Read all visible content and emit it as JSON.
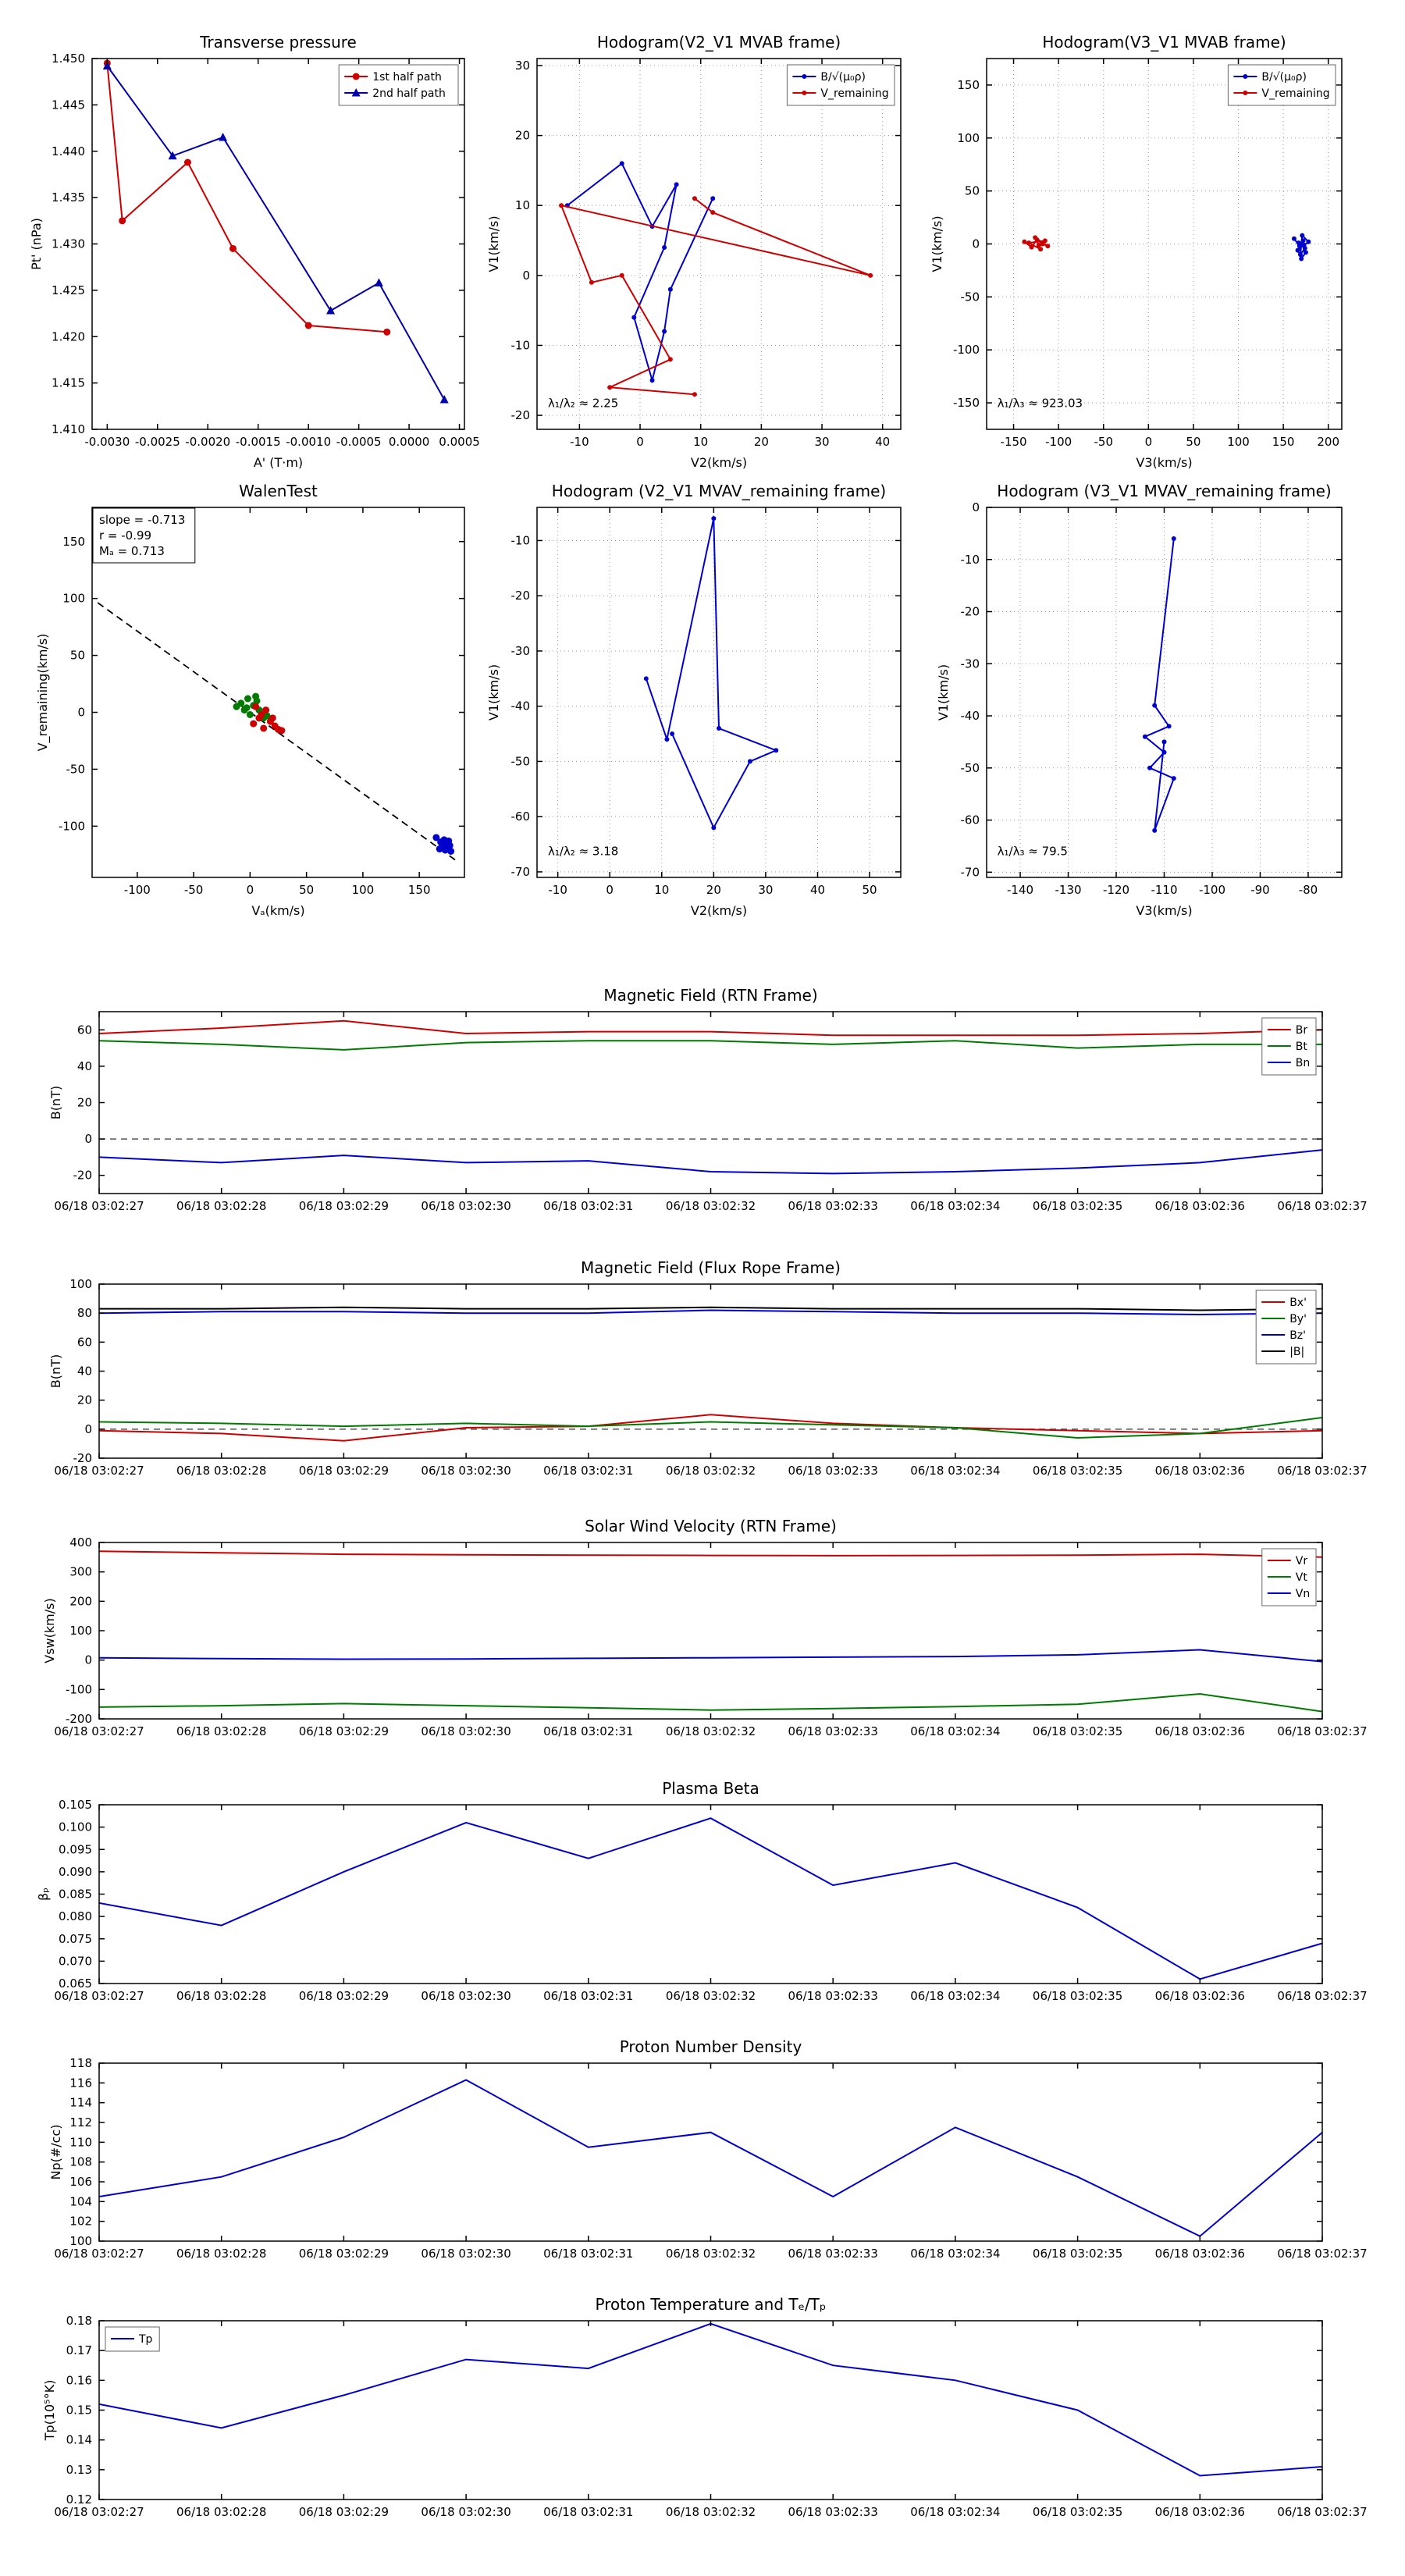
{
  "figure": {
    "background": "#ffffff"
  },
  "times": [
    "06/18 03:02:27",
    "06/18 03:02:28",
    "06/18 03:02:29",
    "06/18 03:02:30",
    "06/18 03:02:31",
    "06/18 03:02:32",
    "06/18 03:02:33",
    "06/18 03:02:34",
    "06/18 03:02:35",
    "06/18 03:02:36",
    "06/18 03:02:37"
  ],
  "colors": {
    "red": "#cc0000",
    "green": "#007a00",
    "blue": "#0000cc",
    "black": "#000000"
  },
  "chart_data": [
    {
      "id": "transverse_pressure",
      "type": "line",
      "title": "Transverse pressure",
      "xlabel": "A' (T·m)",
      "ylabel": "Pt' (nPa)",
      "xlim": [
        -0.00315,
        0.00055
      ],
      "ylim": [
        1.41,
        1.45
      ],
      "xticks": [
        -0.003,
        -0.0025,
        -0.002,
        -0.0015,
        -0.001,
        -0.0005,
        0.0,
        0.0005
      ],
      "xtick_labels": [
        "-0.0030",
        "-0.0025",
        "-0.0020",
        "-0.0015",
        "-0.0010",
        "-0.0005",
        "0.0000",
        "0.0005"
      ],
      "yticks": [
        1.41,
        1.415,
        1.42,
        1.425,
        1.43,
        1.435,
        1.44,
        1.445,
        1.45
      ],
      "ytick_labels": [
        "1.410",
        "1.415",
        "1.420",
        "1.425",
        "1.430",
        "1.435",
        "1.440",
        "1.445",
        "1.450"
      ],
      "grid": false,
      "legend": {
        "pos": "ne"
      },
      "series": [
        {
          "name": "1st half path",
          "color": "#cc0000",
          "marker": "o",
          "x": [
            -0.003,
            -0.00285,
            -0.0022,
            -0.00175,
            -0.001,
            -0.00022
          ],
          "y": [
            1.4495,
            1.4325,
            1.4388,
            1.4295,
            1.4212,
            1.4205
          ]
        },
        {
          "name": "2nd half path",
          "color": "#0000aa",
          "marker": "^",
          "x": [
            -0.003,
            -0.00235,
            -0.00185,
            -0.00078,
            -0.0003,
            0.00035
          ],
          "y": [
            1.4492,
            1.4395,
            1.4415,
            1.4228,
            1.4258,
            1.4132
          ]
        }
      ]
    },
    {
      "id": "hodogram_v2v1_mvab",
      "type": "line",
      "title": "Hodogram(V2_V1 MVAB frame)",
      "xlabel": "V2(km/s)",
      "ylabel": "V1(km/s)",
      "xlim": [
        -17,
        43
      ],
      "ylim": [
        -22,
        31
      ],
      "xticks": [
        -10,
        0,
        10,
        20,
        30,
        40
      ],
      "yticks": [
        -20,
        -10,
        0,
        10,
        20,
        30
      ],
      "grid": true,
      "legend": {
        "pos": "ne"
      },
      "annotations": [
        {
          "text": "λ₁/λ₂ ≈ 2.25",
          "fx": 0.03,
          "fy": 0.94
        }
      ],
      "series": [
        {
          "name": "B/√(μ₀ρ)",
          "color": "#0000cc",
          "marker": ".",
          "x": [
            -12,
            -3,
            2,
            6,
            4,
            -1,
            2,
            4,
            5,
            12
          ],
          "y": [
            10,
            16,
            7,
            13,
            4,
            -6,
            -15,
            -8,
            -2,
            11
          ]
        },
        {
          "name": "V_remaining",
          "color": "#cc0000",
          "marker": ".",
          "x": [
            9,
            12,
            38,
            -13,
            -8,
            -3,
            5,
            -5,
            9
          ],
          "y": [
            11,
            9,
            0,
            10,
            -1,
            0,
            -12,
            -16,
            -17
          ]
        }
      ]
    },
    {
      "id": "hodogram_v3v1_mvab",
      "type": "line",
      "title": "Hodogram(V3_V1 MVAB frame)",
      "xlabel": "V3(km/s)",
      "ylabel": "V1(km/s)",
      "xlim": [
        -180,
        215
      ],
      "ylim": [
        -175,
        175
      ],
      "xticks": [
        -150,
        -100,
        -50,
        0,
        50,
        100,
        150,
        200
      ],
      "yticks": [
        -150,
        -100,
        -50,
        0,
        50,
        100,
        150
      ],
      "grid": true,
      "legend": {
        "pos": "ne"
      },
      "annotations": [
        {
          "text": "λ₁/λ₃ ≈ 923.03",
          "fx": 0.03,
          "fy": 0.94
        }
      ],
      "series": [
        {
          "name": "B/√(μ₀ρ)",
          "color": "#0000cc",
          "marker": ".",
          "x": [
            162,
            168,
            172,
            175,
            170,
            166,
            173,
            178,
            171,
            169,
            174,
            167
          ],
          "y": [
            5,
            -2,
            3,
            -8,
            -14,
            -6,
            -1,
            2,
            8,
            -10,
            -4,
            1
          ]
        },
        {
          "name": "V_remaining",
          "color": "#cc0000",
          "marker": ".",
          "x": [
            -138,
            -130,
            -124,
            -118,
            -112,
            -126,
            -120,
            -133,
            -115,
            -122
          ],
          "y": [
            2,
            -3,
            4,
            0,
            -2,
            6,
            -5,
            1,
            3,
            -1
          ]
        }
      ]
    },
    {
      "id": "walen_test",
      "type": "scatter",
      "title": "WalenTest",
      "xlabel": "Vₐ(km/s)",
      "ylabel": "V_remaining(km/s)",
      "xlim": [
        -140,
        190
      ],
      "ylim": [
        -145,
        180
      ],
      "xticks": [
        -100,
        -50,
        0,
        50,
        100,
        150
      ],
      "yticks": [
        -100,
        -50,
        0,
        50,
        100,
        150
      ],
      "grid": false,
      "textbox": {
        "lines": [
          "slope = -0.713",
          "r = -0.99",
          "Mₐ = 0.713"
        ]
      },
      "series": [
        {
          "name": null,
          "color": "#000000",
          "dash": "9,6",
          "lw": 1.8,
          "line": true,
          "x": [
            -135,
            185
          ],
          "y": [
            96.3,
            -131.9
          ]
        },
        {
          "name": null,
          "color": "#007a00",
          "marker": "o",
          "line": false,
          "x": [
            -8,
            -2,
            3,
            8,
            -5,
            0,
            12,
            6,
            15,
            -12,
            5,
            -3
          ],
          "y": [
            8,
            12,
            6,
            2,
            2,
            -2,
            -5,
            10,
            -3,
            5,
            14,
            4
          ]
        },
        {
          "name": null,
          "color": "#cc0000",
          "marker": "o",
          "line": false,
          "x": [
            5,
            10,
            18,
            22,
            8,
            14,
            25,
            3,
            20,
            12,
            28
          ],
          "y": [
            5,
            -2,
            -8,
            -12,
            -5,
            2,
            -15,
            -10,
            -5,
            -14,
            -16
          ]
        },
        {
          "name": null,
          "color": "#0000cc",
          "marker": "o",
          "line": false,
          "x": [
            165,
            170,
            175,
            172,
            168,
            178,
            174,
            171,
            176,
            169,
            173,
            177
          ],
          "y": [
            -110,
            -115,
            -118,
            -112,
            -120,
            -122,
            -116,
            -119,
            -113,
            -114,
            -121,
            -117
          ]
        }
      ]
    },
    {
      "id": "hodogram_v2v1_mvav",
      "type": "line",
      "title": "Hodogram (V2_V1 MVAV_remaining frame)",
      "xlabel": "V2(km/s)",
      "ylabel": "V1(km/s)",
      "xlim": [
        -14,
        56
      ],
      "ylim": [
        -71,
        -4
      ],
      "xticks": [
        -10,
        0,
        10,
        20,
        30,
        40,
        50
      ],
      "yticks": [
        -70,
        -60,
        -50,
        -40,
        -30,
        -20,
        -10
      ],
      "grid": true,
      "annotations": [
        {
          "text": "λ₁/λ₂ ≈ 3.18",
          "fx": 0.03,
          "fy": 0.94
        }
      ],
      "series": [
        {
          "name": null,
          "color": "#0000cc",
          "marker": ".",
          "x": [
            7,
            11,
            20,
            21,
            32,
            27,
            20,
            12
          ],
          "y": [
            -35,
            -46,
            -6,
            -44,
            -48,
            -50,
            -62,
            -45
          ]
        }
      ]
    },
    {
      "id": "hodogram_v3v1_mvav",
      "type": "line",
      "title": "Hodogram (V3_V1 MVAV_remaining frame)",
      "xlabel": "V3(km/s)",
      "ylabel": "V1(km/s)",
      "xlim": [
        -147,
        -73
      ],
      "ylim": [
        -71,
        0
      ],
      "xticks": [
        -140,
        -130,
        -120,
        -110,
        -100,
        -90,
        -80
      ],
      "yticks": [
        -70,
        -60,
        -50,
        -40,
        -30,
        -20,
        -10,
        0
      ],
      "grid": true,
      "annotations": [
        {
          "text": "λ₁/λ₃ ≈ 79.5",
          "fx": 0.03,
          "fy": 0.94
        }
      ],
      "series": [
        {
          "name": null,
          "color": "#0000cc",
          "marker": ".",
          "x": [
            -108,
            -112,
            -109,
            -114,
            -110,
            -113,
            -108,
            -112,
            -110
          ],
          "y": [
            -6,
            -38,
            -42,
            -44,
            -47,
            -50,
            -52,
            -62,
            -45
          ]
        }
      ]
    },
    {
      "id": "mag_rtn",
      "type": "line",
      "title": "Magnetic Field (RTN Frame)",
      "ylabel": "B(nT)",
      "xlim": [
        0,
        10
      ],
      "ylim": [
        -30,
        70
      ],
      "xticks": [
        0,
        1,
        2,
        3,
        4,
        5,
        6,
        7,
        8,
        9,
        10
      ],
      "xtick_labels": "times",
      "yticks": [
        -20,
        0,
        20,
        40,
        60
      ],
      "zero_dash": true,
      "legend": {
        "pos": "ne"
      },
      "series": [
        {
          "name": "Br",
          "color": "#cc0000",
          "y": [
            58,
            61,
            65,
            58,
            59,
            59,
            57,
            57,
            57,
            58,
            60
          ]
        },
        {
          "name": "Bt",
          "color": "#007a00",
          "y": [
            54,
            52,
            49,
            53,
            54,
            54,
            52,
            54,
            50,
            52,
            52
          ]
        },
        {
          "name": "Bn",
          "color": "#0000cc",
          "y": [
            -10,
            -13,
            -9,
            -13,
            -12,
            -18,
            -19,
            -18,
            -16,
            -13,
            -6
          ]
        }
      ]
    },
    {
      "id": "mag_fluxrope",
      "type": "line",
      "title": "Magnetic Field (Flux Rope Frame)",
      "ylabel": "B(nT)",
      "xlim": [
        0,
        10
      ],
      "ylim": [
        -20,
        100
      ],
      "xticks": [
        0,
        1,
        2,
        3,
        4,
        5,
        6,
        7,
        8,
        9,
        10
      ],
      "xtick_labels": "times",
      "yticks": [
        -20,
        0,
        20,
        40,
        60,
        80,
        100
      ],
      "zero_dash": true,
      "legend": {
        "pos": "ne"
      },
      "series": [
        {
          "name": "Bx'",
          "color": "#cc0000",
          "y": [
            -1,
            -3,
            -8,
            1,
            2,
            10,
            4,
            1,
            -1,
            -3,
            -1
          ]
        },
        {
          "name": "By'",
          "color": "#007a00",
          "y": [
            5,
            4,
            2,
            4,
            2,
            5,
            3,
            1,
            -6,
            -3,
            8
          ]
        },
        {
          "name": "Bz'",
          "color": "#0000cc",
          "y": [
            80,
            81,
            81,
            80,
            80,
            82,
            81,
            80,
            80,
            79,
            80
          ]
        },
        {
          "name": "|B|",
          "color": "#000000",
          "y": [
            83,
            83,
            84,
            83,
            83,
            84,
            83,
            83,
            83,
            82,
            83
          ]
        }
      ]
    },
    {
      "id": "vsw_rtn",
      "type": "line",
      "title": "Solar Wind Velocity (RTN Frame)",
      "ylabel": "Vsw(km/s)",
      "xlim": [
        0,
        10
      ],
      "ylim": [
        -200,
        400
      ],
      "xticks": [
        0,
        1,
        2,
        3,
        4,
        5,
        6,
        7,
        8,
        9,
        10
      ],
      "xtick_labels": "times",
      "yticks": [
        -200,
        -100,
        0,
        100,
        200,
        300,
        400
      ],
      "legend": {
        "pos": "ne"
      },
      "series": [
        {
          "name": "Vr",
          "color": "#cc0000",
          "y": [
            370,
            365,
            360,
            358,
            357,
            356,
            355,
            356,
            357,
            360,
            350
          ]
        },
        {
          "name": "Vt",
          "color": "#007a00",
          "y": [
            -160,
            -155,
            -148,
            -155,
            -162,
            -170,
            -165,
            -158,
            -150,
            -115,
            -175
          ]
        },
        {
          "name": "Vn",
          "color": "#0000cc",
          "y": [
            8,
            5,
            3,
            4,
            6,
            8,
            10,
            12,
            18,
            35,
            -5
          ]
        }
      ]
    },
    {
      "id": "plasma_beta",
      "type": "line",
      "title": "Plasma Beta",
      "ylabel": "βₚ",
      "xlim": [
        0,
        10
      ],
      "ylim": [
        0.065,
        0.105
      ],
      "xticks": [
        0,
        1,
        2,
        3,
        4,
        5,
        6,
        7,
        8,
        9,
        10
      ],
      "xtick_labels": "times",
      "yticks": [
        0.065,
        0.07,
        0.075,
        0.08,
        0.085,
        0.09,
        0.095,
        0.1,
        0.105
      ],
      "ytick_labels": [
        "0.065",
        "0.070",
        "0.075",
        "0.080",
        "0.085",
        "0.090",
        "0.095",
        "0.100",
        "0.105"
      ],
      "series": [
        {
          "name": null,
          "color": "#0000cc",
          "y": [
            0.083,
            0.078,
            0.09,
            0.101,
            0.093,
            0.102,
            0.087,
            0.092,
            0.082,
            0.066,
            0.074
          ]
        }
      ]
    },
    {
      "id": "proton_density",
      "type": "line",
      "title": "Proton Number Density",
      "ylabel": "Np(#/cc)",
      "xlim": [
        0,
        10
      ],
      "ylim": [
        100,
        118
      ],
      "xticks": [
        0,
        1,
        2,
        3,
        4,
        5,
        6,
        7,
        8,
        9,
        10
      ],
      "xtick_labels": "times",
      "yticks": [
        100,
        102,
        104,
        106,
        108,
        110,
        112,
        114,
        116,
        118
      ],
      "series": [
        {
          "name": null,
          "color": "#0000cc",
          "y": [
            104.5,
            106.5,
            110.5,
            116.3,
            109.5,
            111,
            104.5,
            111.5,
            106.5,
            100.5,
            111
          ]
        }
      ]
    },
    {
      "id": "proton_temp",
      "type": "line",
      "title": "Proton Temperature and Tₑ/Tₚ",
      "ylabel": "Tp(10⁵°K)",
      "xlim": [
        0,
        10
      ],
      "ylim": [
        0.12,
        0.18
      ],
      "xticks": [
        0,
        1,
        2,
        3,
        4,
        5,
        6,
        7,
        8,
        9,
        10
      ],
      "xtick_labels": "times",
      "yticks": [
        0.12,
        0.13,
        0.14,
        0.15,
        0.16,
        0.17,
        0.18
      ],
      "ytick_labels": [
        "0.12",
        "0.13",
        "0.14",
        "0.15",
        "0.16",
        "0.17",
        "0.18"
      ],
      "legend": {
        "pos": "nw"
      },
      "series": [
        {
          "name": "Tp",
          "color": "#0000cc",
          "y": [
            0.152,
            0.144,
            0.155,
            0.167,
            0.164,
            0.179,
            0.165,
            0.16,
            0.15,
            0.128,
            0.131
          ]
        }
      ]
    }
  ]
}
